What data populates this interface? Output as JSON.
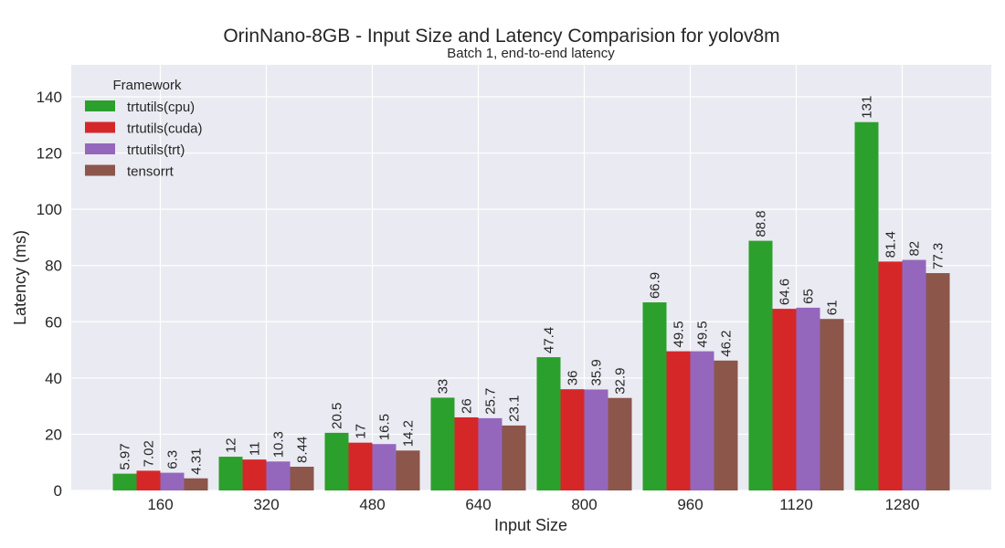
{
  "chart_data": {
    "type": "bar",
    "title": "OrinNano-8GB - Input Size and Latency Comparision for yolov8m",
    "subtitle": "Batch 1, end-to-end latency",
    "xlabel": "Input Size",
    "ylabel": "Latency (ms)",
    "ylim": [
      0,
      151
    ],
    "yticks": [
      0,
      20,
      40,
      60,
      80,
      100,
      120,
      140
    ],
    "grid": true,
    "legend": {
      "title": "Framework",
      "placement": "top-left"
    },
    "categories": [
      "160",
      "320",
      "480",
      "640",
      "800",
      "960",
      "1120",
      "1280"
    ],
    "series": [
      {
        "name": "trtutils(cpu)",
        "color": "#2ca02c",
        "values": [
          5.97,
          12,
          20.5,
          33,
          47.4,
          66.9,
          88.8,
          131
        ]
      },
      {
        "name": "trtutils(cuda)",
        "color": "#d62728",
        "values": [
          7.02,
          11,
          17,
          26,
          36,
          49.5,
          64.6,
          81.4
        ]
      },
      {
        "name": "trtutils(trt)",
        "color": "#9467bd",
        "values": [
          6.3,
          10.3,
          16.5,
          25.7,
          35.9,
          49.5,
          65,
          82
        ]
      },
      {
        "name": "tensorrt",
        "color": "#8c564b",
        "values": [
          4.31,
          8.44,
          14.2,
          23.1,
          32.9,
          46.2,
          61,
          77.3
        ]
      }
    ],
    "bar_labels": [
      [
        "5.97",
        "12",
        "20.5",
        "33",
        "47.4",
        "66.9",
        "88.8",
        "131"
      ],
      [
        "7.02",
        "11",
        "17",
        "26",
        "36",
        "49.5",
        "64.6",
        "81.4"
      ],
      [
        "6.3",
        "10.3",
        "16.5",
        "25.7",
        "35.9",
        "49.5",
        "65",
        "82"
      ],
      [
        "4.31",
        "8.44",
        "14.2",
        "23.1",
        "32.9",
        "46.2",
        "61",
        "77.3"
      ]
    ],
    "plot_background": "#eaeaf2",
    "grid_color": "#ffffff"
  }
}
